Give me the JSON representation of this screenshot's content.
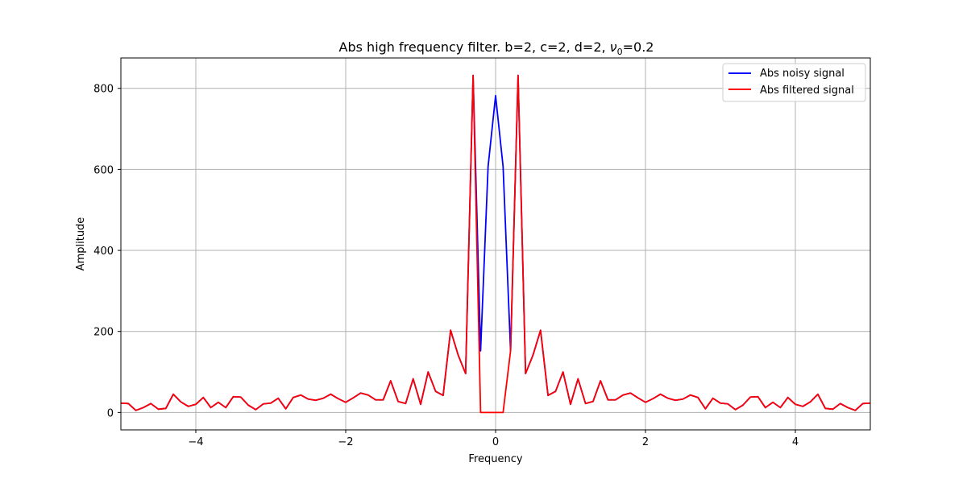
{
  "chart_data": {
    "type": "line",
    "title_main": "Abs high frequency filter. b=2, c=2, d=2, ",
    "title_nu": "ν",
    "title_sub": "0",
    "title_tail": "=0.2",
    "xlabel": "Frequency",
    "ylabel": "Amplitude",
    "xlim": [
      -5,
      5
    ],
    "ylim": [
      -43,
      875
    ],
    "xticks": [
      -4,
      -2,
      0,
      2,
      4
    ],
    "xtick_labels": [
      "−4",
      "−2",
      "0",
      "2",
      "4"
    ],
    "yticks": [
      0,
      200,
      400,
      600,
      800
    ],
    "ytick_labels": [
      "0",
      "200",
      "400",
      "600",
      "800"
    ],
    "grid": true,
    "legend_position": "top-right",
    "x": [
      -5.0,
      -4.9,
      -4.8,
      -4.7,
      -4.6,
      -4.5,
      -4.4,
      -4.3,
      -4.2,
      -4.1,
      -4.0,
      -3.9,
      -3.8,
      -3.7,
      -3.6,
      -3.5,
      -3.4,
      -3.3,
      -3.2,
      -3.1,
      -3.0,
      -2.9,
      -2.8,
      -2.7,
      -2.6,
      -2.5,
      -2.4,
      -2.3,
      -2.2,
      -2.1,
      -2.0,
      -1.9,
      -1.8,
      -1.7,
      -1.6,
      -1.5,
      -1.4,
      -1.3,
      -1.2,
      -1.1,
      -1.0,
      -0.9,
      -0.8,
      -0.7,
      -0.6,
      -0.5,
      -0.4,
      -0.3,
      -0.2,
      -0.1,
      0.0,
      0.1,
      0.2,
      0.3,
      0.4,
      0.5,
      0.6,
      0.7,
      0.8,
      0.9,
      1.0,
      1.1,
      1.2,
      1.3,
      1.4,
      1.5,
      1.6,
      1.7,
      1.8,
      1.9,
      2.0,
      2.1,
      2.2,
      2.3,
      2.4,
      2.5,
      2.6,
      2.7,
      2.8,
      2.9,
      3.0,
      3.1,
      3.2,
      3.3,
      3.4,
      3.5,
      3.6,
      3.7,
      3.8,
      3.9,
      4.0,
      4.1,
      4.2,
      4.3,
      4.4,
      4.5,
      4.6,
      4.7,
      4.8,
      4.9,
      5.0
    ],
    "series": [
      {
        "name": "Abs noisy signal",
        "color": "#0000ff",
        "values": [
          23,
          22,
          5,
          12,
          22,
          8,
          10,
          45,
          26,
          15,
          20,
          37,
          12,
          25,
          12,
          39,
          38,
          18,
          7,
          21,
          23,
          35,
          9,
          37,
          43,
          33,
          30,
          35,
          45,
          34,
          25,
          36,
          48,
          43,
          31,
          31,
          78,
          27,
          22,
          83,
          20,
          100,
          52,
          42,
          203,
          142,
          96,
          832,
          152,
          607,
          782,
          607,
          152,
          832,
          96,
          142,
          203,
          42,
          52,
          100,
          20,
          83,
          22,
          27,
          78,
          31,
          31,
          43,
          48,
          36,
          25,
          34,
          45,
          35,
          30,
          33,
          43,
          37,
          9,
          35,
          23,
          21,
          7,
          18,
          38,
          39,
          12,
          25,
          12,
          37,
          20,
          15,
          26,
          45,
          10,
          8,
          22,
          12,
          5,
          22,
          23
        ]
      },
      {
        "name": "Abs filtered signal",
        "color": "#ff0000",
        "values": [
          23,
          22,
          5,
          12,
          22,
          8,
          10,
          45,
          26,
          15,
          20,
          37,
          12,
          25,
          12,
          39,
          38,
          18,
          7,
          21,
          23,
          35,
          9,
          37,
          43,
          33,
          30,
          35,
          45,
          34,
          25,
          36,
          48,
          43,
          31,
          31,
          78,
          27,
          22,
          83,
          20,
          100,
          52,
          42,
          203,
          142,
          96,
          832,
          0,
          0,
          0,
          0,
          152,
          832,
          96,
          142,
          203,
          42,
          52,
          100,
          20,
          83,
          22,
          27,
          78,
          31,
          31,
          43,
          48,
          36,
          25,
          34,
          45,
          35,
          30,
          33,
          43,
          37,
          9,
          35,
          23,
          21,
          7,
          18,
          38,
          39,
          12,
          25,
          12,
          37,
          20,
          15,
          26,
          45,
          10,
          8,
          22,
          12,
          5,
          22,
          23
        ]
      }
    ]
  }
}
